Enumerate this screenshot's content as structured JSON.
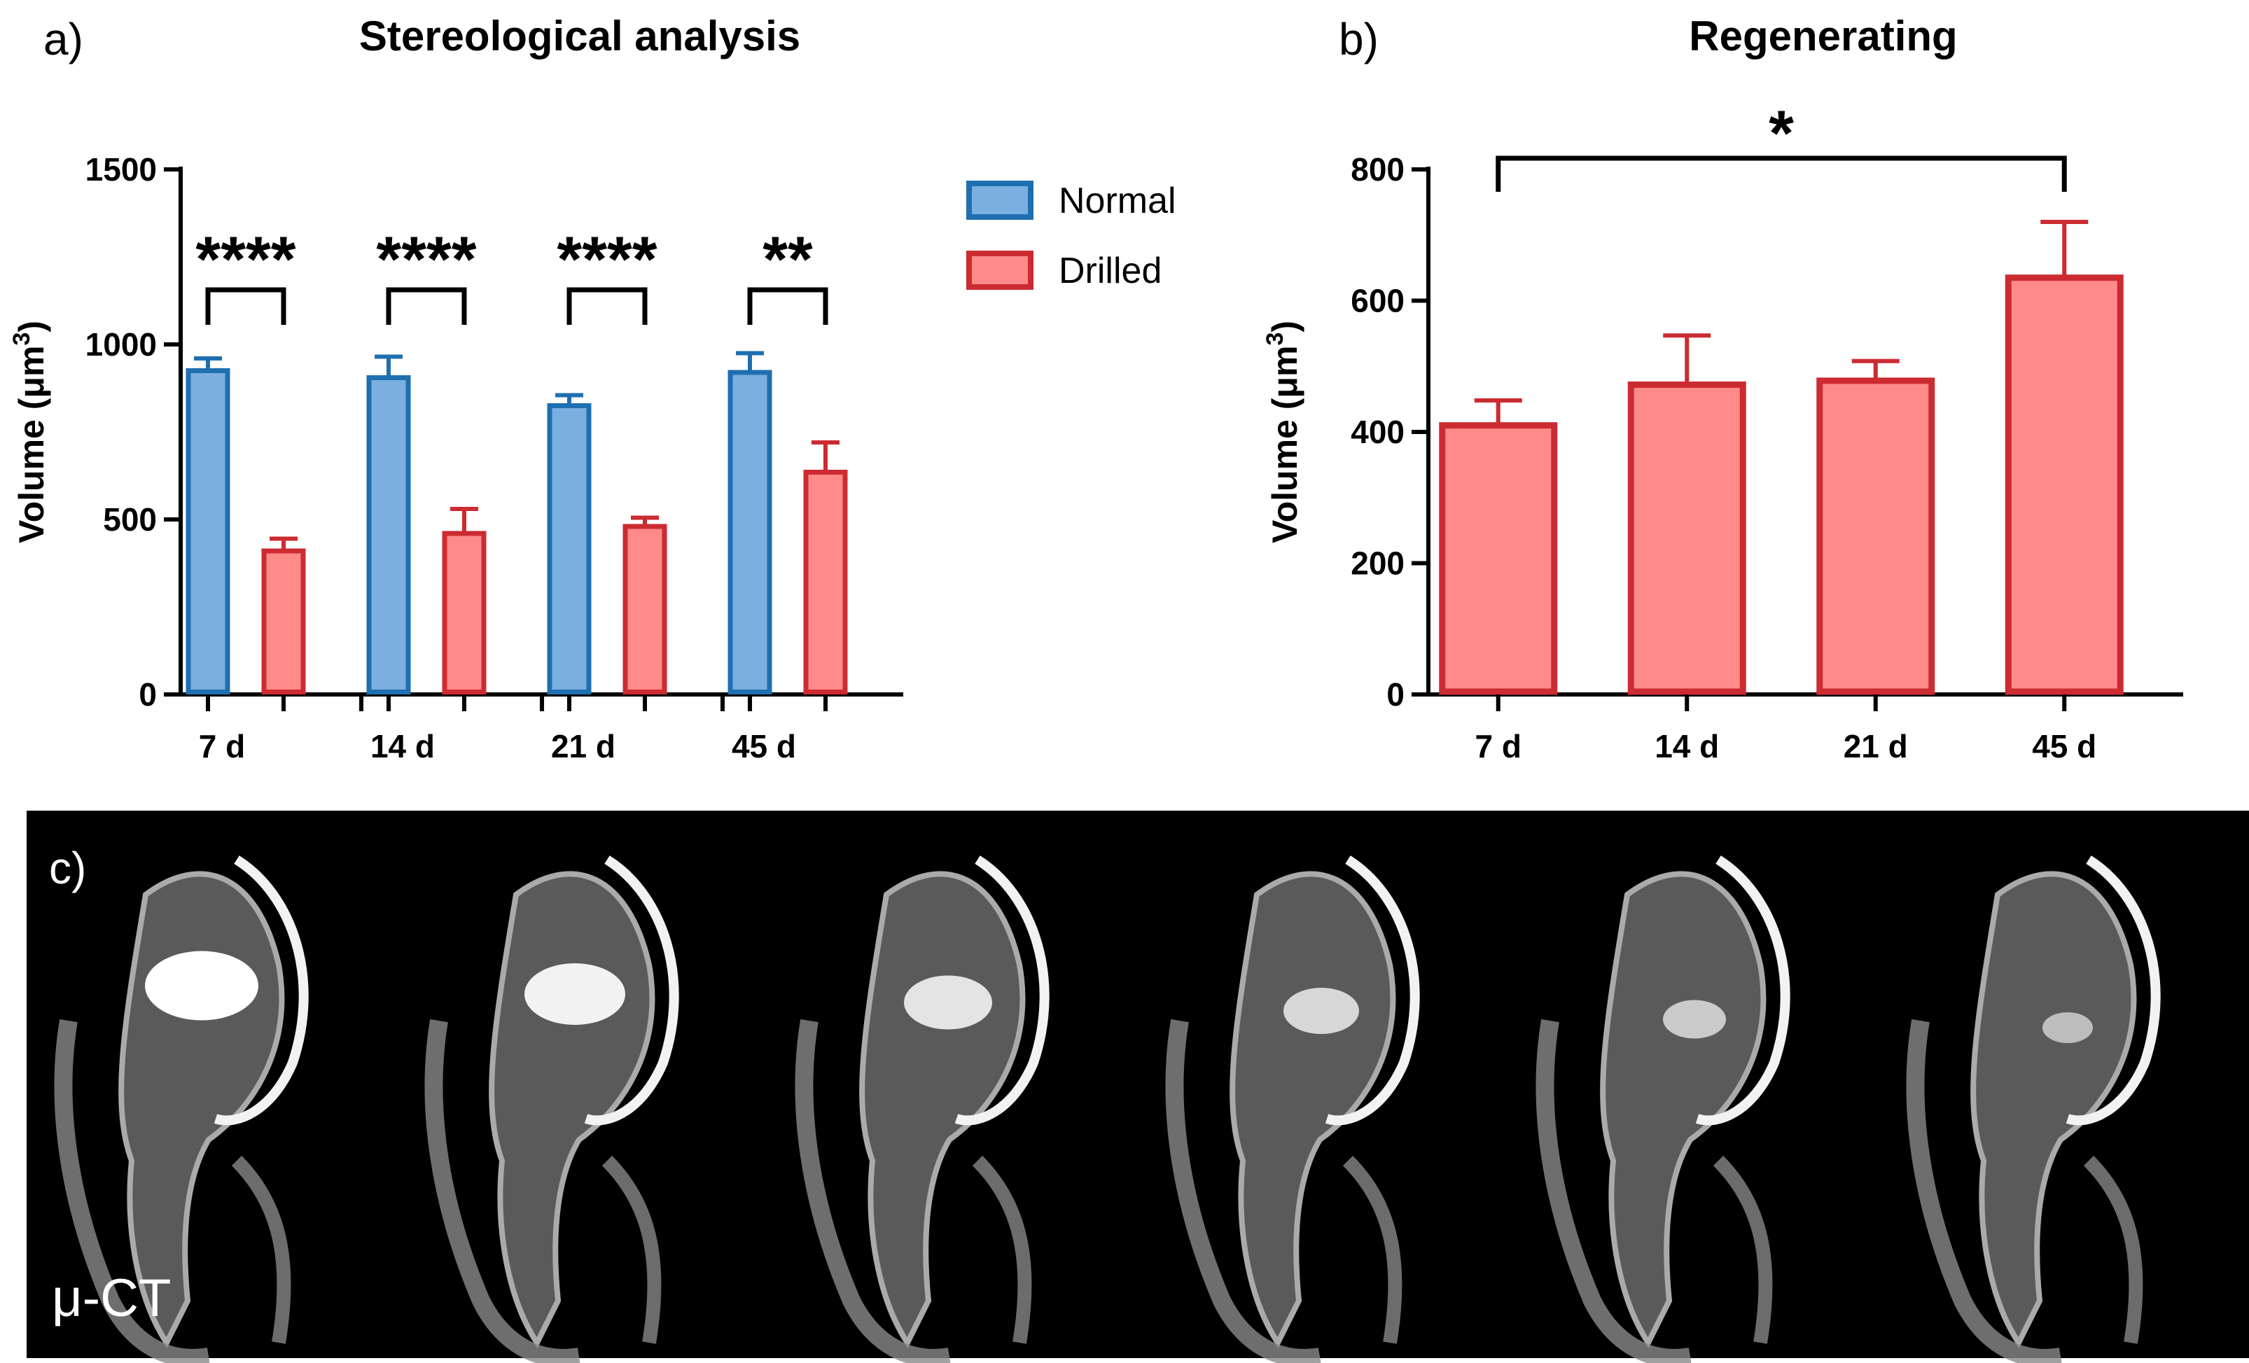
{
  "panels": {
    "a": {
      "letter": "a)",
      "title": "Stereological analysis"
    },
    "b": {
      "letter": "b)",
      "title": "Regenerating"
    },
    "c": {
      "letter": "c)",
      "label": "μ-CT",
      "slice_count": 6
    }
  },
  "chart_data": [
    {
      "type": "bar",
      "title": "Stereological analysis",
      "categories": [
        "7 d",
        "14 d",
        "21 d",
        "45 d"
      ],
      "ylabel": "Volume (μm³)",
      "ylim": [
        0,
        1500
      ],
      "yticks": [
        0,
        500,
        1000,
        1500
      ],
      "legend_position": "top-right",
      "series": [
        {
          "name": "Normal",
          "values": [
            925,
            905,
            825,
            920
          ],
          "errors": [
            35,
            60,
            30,
            55
          ],
          "fill": "#7aafe0",
          "stroke": "#1f6fb0"
        },
        {
          "name": "Drilled",
          "values": [
            410,
            460,
            480,
            635
          ],
          "errors": [
            35,
            70,
            25,
            85
          ],
          "fill": "#ff8a8a",
          "stroke": "#cc2b32"
        }
      ],
      "significance": [
        "****",
        "****",
        "****",
        "**"
      ]
    },
    {
      "type": "bar",
      "title": "Regenerating",
      "categories": [
        "7 d",
        "14 d",
        "21 d",
        "45 d"
      ],
      "ylabel": "Volume (μm³)",
      "ylim": [
        0,
        800
      ],
      "yticks": [
        0,
        200,
        400,
        600,
        800
      ],
      "series": [
        {
          "values": [
            410,
            472,
            478,
            635
          ],
          "errors": [
            38,
            75,
            30,
            85
          ],
          "fill": "#ff8a8a",
          "stroke": "#cc2b32"
        }
      ],
      "comparison": {
        "from": "7 d",
        "to": "45 d",
        "label": "*"
      }
    }
  ]
}
